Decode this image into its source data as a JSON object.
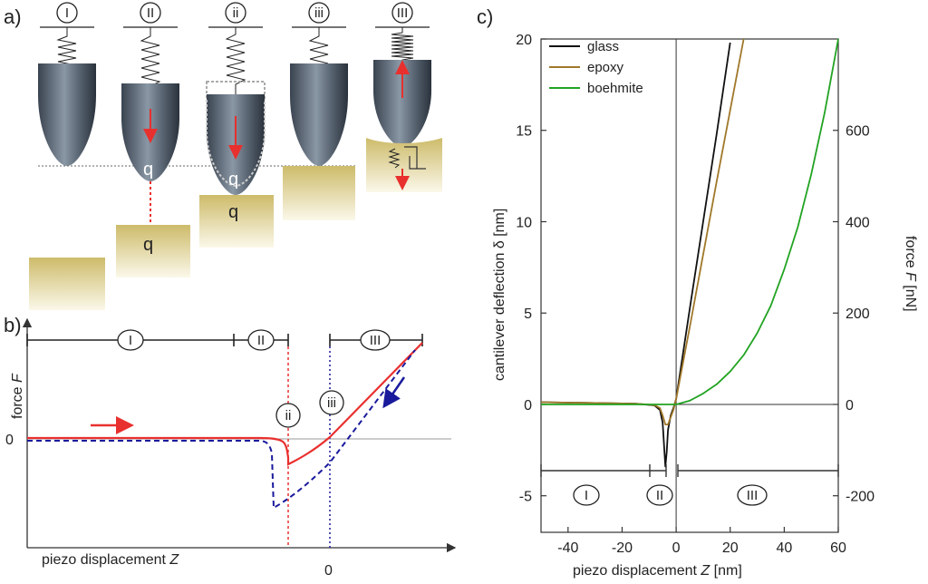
{
  "panel_labels": {
    "a": "a)",
    "b": "b)",
    "c": "c)"
  },
  "panel_a": {
    "stages": [
      "I",
      "II",
      "ii",
      "iii",
      "III"
    ],
    "vector_label": "q"
  },
  "panel_b": {
    "regions": [
      "I",
      "II",
      "III"
    ],
    "markers": [
      "ii",
      "iii"
    ],
    "ylabel_prefix": "force ",
    "ylabel_var": "F",
    "xlabel_prefix": "piezo displacement ",
    "xlabel_var": "Z",
    "y_zero_label": "0",
    "x_zero_label": "0",
    "approach_color": "#e8302e",
    "retract_color": "#1a1a9c"
  },
  "chart_data": {
    "type": "line",
    "title": "",
    "xlabel_prefix": "piezo displacement ",
    "xlabel_var": "Z",
    "xlabel_unit": " [nm]",
    "ylabel": "cantilever deflection δ [nm]",
    "y2label_prefix": "force ",
    "y2label_var": "F",
    "y2label_unit": " [nN]",
    "xlim": [
      -50,
      60
    ],
    "ylim": [
      -7,
      20
    ],
    "y2lim": [
      -280,
      800
    ],
    "xticks": [
      "-40",
      "-20",
      "0",
      "20",
      "40",
      "60"
    ],
    "xtick_values": [
      -40,
      -20,
      0,
      20,
      40,
      60
    ],
    "yticks": [
      "-5",
      "0",
      "5",
      "10",
      "15",
      "20"
    ],
    "ytick_values": [
      -5,
      0,
      5,
      10,
      15,
      20
    ],
    "y2ticks": [
      "-200",
      "0",
      "200",
      "400",
      "600"
    ],
    "y2tick_values": [
      -200,
      0,
      200,
      400,
      600
    ],
    "regions": [
      "I",
      "II",
      "III"
    ],
    "series": [
      {
        "name": "glass",
        "color": "#111111",
        "x": [
          -50,
          -30,
          -15,
          -8,
          -6,
          -5,
          -4.5,
          -4,
          -3.5,
          -3,
          -2,
          -1,
          0,
          5,
          10,
          15,
          20
        ],
        "y": [
          0.12,
          0.08,
          0.04,
          -0.05,
          -0.3,
          -1.0,
          -2.2,
          -3.4,
          -2.6,
          -1.4,
          -0.6,
          -0.2,
          0.3,
          5.2,
          10.0,
          14.8,
          19.8
        ]
      },
      {
        "name": "epoxy",
        "color": "#a0782a",
        "x": [
          -50,
          -30,
          -15,
          -8,
          -6,
          -5,
          -4,
          -3,
          -2,
          -1,
          0,
          5,
          10,
          15,
          20,
          25
        ],
        "y": [
          0.12,
          0.08,
          0.04,
          -0.03,
          -0.2,
          -0.6,
          -1.1,
          -1.1,
          -0.7,
          -0.3,
          0.3,
          4.2,
          8.2,
          12.2,
          16.1,
          20.0
        ]
      },
      {
        "name": "boehmite",
        "color": "#22a322",
        "x": [
          -50,
          -20,
          -10,
          -5,
          0,
          5,
          10,
          15,
          20,
          25,
          30,
          35,
          40,
          45,
          50,
          55,
          60
        ],
        "y": [
          0.0,
          0.0,
          0.0,
          0.0,
          0.0,
          0.2,
          0.6,
          1.1,
          1.8,
          2.7,
          3.9,
          5.4,
          7.4,
          9.7,
          12.6,
          16.0,
          20.0
        ]
      }
    ]
  }
}
